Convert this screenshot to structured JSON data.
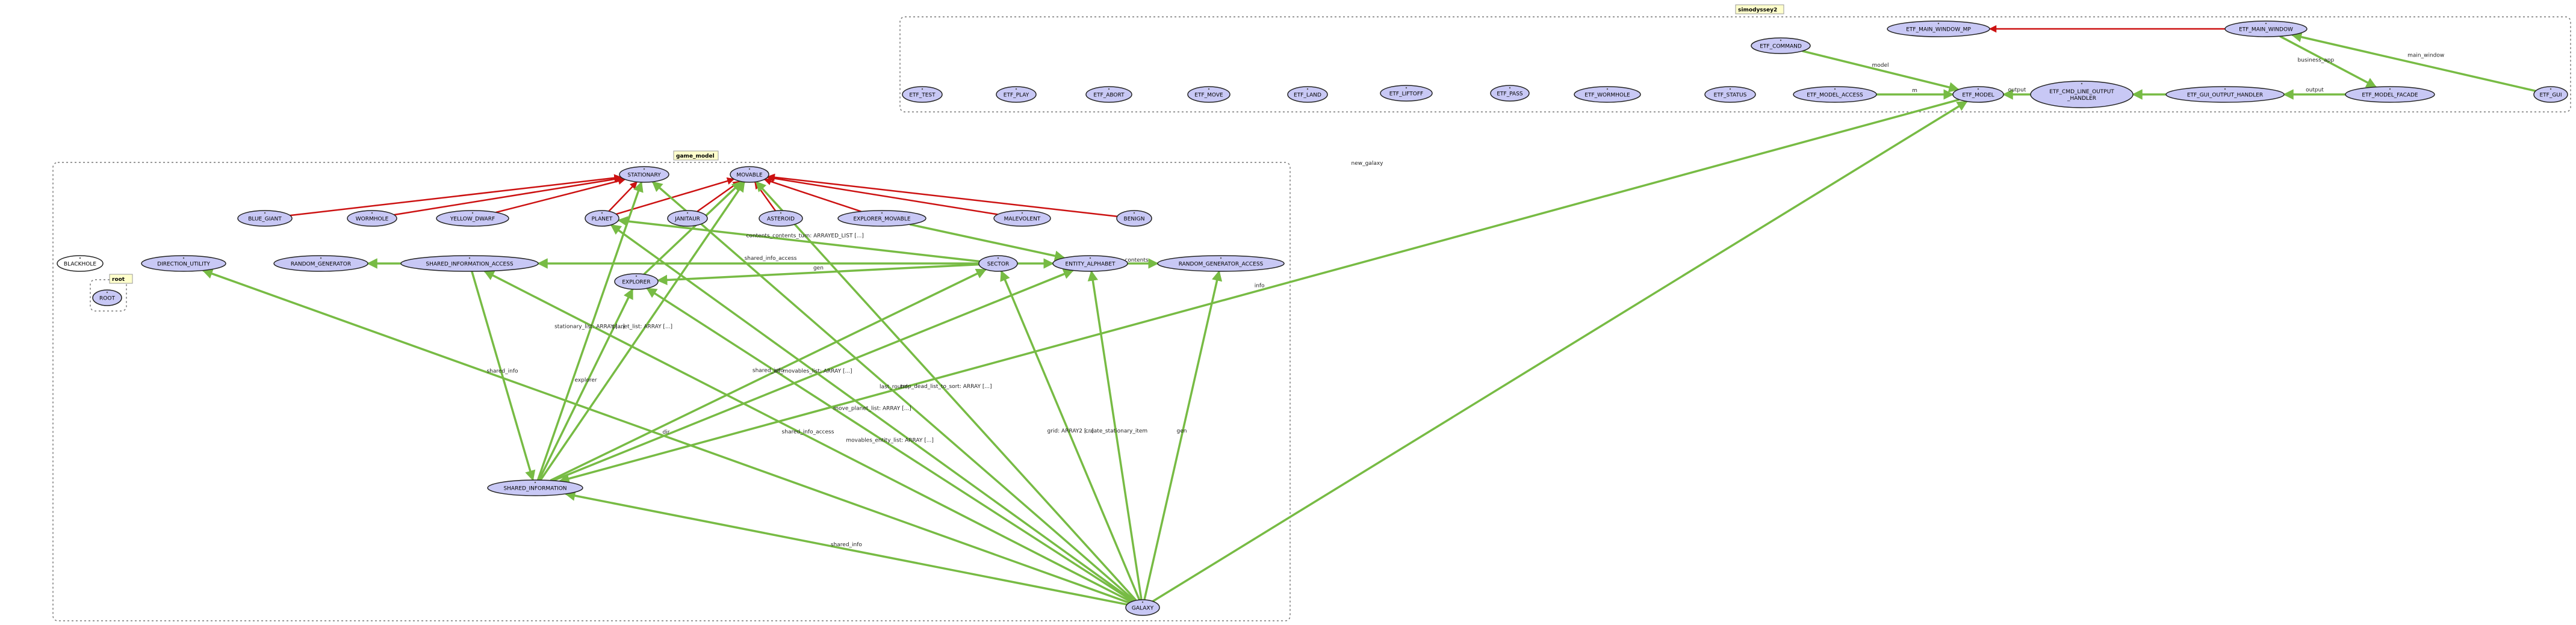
{
  "clusters": [
    {
      "id": "cl_simodyssey2",
      "label": "simodyssey2"
    },
    {
      "id": "cl_game_model",
      "label": "game_model"
    },
    {
      "id": "cl_root",
      "label": "root"
    }
  ],
  "nodes": [
    {
      "id": "n_main_window_mp",
      "label": "ETF_MAIN_WINDOW_MP"
    },
    {
      "id": "n_main_window",
      "label": "ETF_MAIN_WINDOW"
    },
    {
      "id": "n_command",
      "label": "ETF_COMMAND"
    },
    {
      "id": "n_test",
      "label": "ETF_TEST"
    },
    {
      "id": "n_play",
      "label": "ETF_PLAY"
    },
    {
      "id": "n_abort",
      "label": "ETF_ABORT"
    },
    {
      "id": "n_move",
      "label": "ETF_MOVE"
    },
    {
      "id": "n_land",
      "label": "ETF_LAND"
    },
    {
      "id": "n_liftoff",
      "label": "ETF_LIFTOFF"
    },
    {
      "id": "n_pass",
      "label": "ETF_PASS"
    },
    {
      "id": "n_wormhole_cmd",
      "label": "ETF_WORMHOLE"
    },
    {
      "id": "n_status",
      "label": "ETF_STATUS"
    },
    {
      "id": "n_model_access",
      "label": "ETF_MODEL_ACCESS"
    },
    {
      "id": "n_model",
      "label": "ETF_MODEL"
    },
    {
      "id": "n_cmd_line",
      "label": "ETF_CMD_LINE_OUTPUT_HANDLER"
    },
    {
      "id": "n_gui_output",
      "label": "ETF_GUI_OUTPUT_HANDLER"
    },
    {
      "id": "n_model_facade",
      "label": "ETF_MODEL_FACADE"
    },
    {
      "id": "n_gui",
      "label": "ETF_GUI"
    },
    {
      "id": "n_stationary",
      "label": "STATIONARY"
    },
    {
      "id": "n_movable",
      "label": "MOVABLE"
    },
    {
      "id": "n_blue_giant",
      "label": "BLUE_GIANT"
    },
    {
      "id": "n_wormhole",
      "label": "WORMHOLE"
    },
    {
      "id": "n_yellow_dwarf",
      "label": "YELLOW_DWARF"
    },
    {
      "id": "n_planet",
      "label": "PLANET"
    },
    {
      "id": "n_janitaur",
      "label": "JANITAUR"
    },
    {
      "id": "n_asteroid",
      "label": "ASTEROID"
    },
    {
      "id": "n_explorer_movable",
      "label": "EXPLORER_MOVABLE"
    },
    {
      "id": "n_malevolent",
      "label": "MALEVOLENT"
    },
    {
      "id": "n_benign",
      "label": "BENIGN"
    },
    {
      "id": "n_blackhole",
      "label": "BLACKHOLE",
      "deferred": true
    },
    {
      "id": "n_direction_utility",
      "label": "DIRECTION_UTILITY"
    },
    {
      "id": "n_random_generator",
      "label": "RANDOM_GENERATOR"
    },
    {
      "id": "n_shared_info_access",
      "label": "SHARED_INFORMATION_ACCESS"
    },
    {
      "id": "n_sector",
      "label": "SECTOR"
    },
    {
      "id": "n_entity_alphabet",
      "label": "ENTITY_ALPHABET"
    },
    {
      "id": "n_rng_access",
      "label": "RANDOM_GENERATOR_ACCESS"
    },
    {
      "id": "n_explorer",
      "label": "EXPLORER"
    },
    {
      "id": "n_root",
      "label": "ROOT"
    },
    {
      "id": "n_shared_information",
      "label": "SHARED_INFORMATION"
    },
    {
      "id": "n_galaxy",
      "label": "GALAXY"
    }
  ],
  "edges": [
    {
      "from": "n_main_window",
      "to": "n_main_window_mp",
      "kind": "inherit",
      "label": ""
    },
    {
      "from": "n_command",
      "to": "n_model",
      "kind": "client",
      "label": "model"
    },
    {
      "from": "n_model_access",
      "to": "n_model",
      "kind": "client",
      "label": "m"
    },
    {
      "from": "n_cmd_line",
      "to": "n_model",
      "kind": "client",
      "label": "output"
    },
    {
      "from": "n_gui_output",
      "to": "n_cmd_line",
      "kind": "client",
      "label": ""
    },
    {
      "from": "n_model_facade",
      "to": "n_gui_output",
      "kind": "client",
      "label": "output"
    },
    {
      "from": "n_main_window",
      "to": "n_model_facade",
      "kind": "client",
      "label": "business_app"
    },
    {
      "from": "n_gui",
      "to": "n_main_window",
      "kind": "client",
      "label": "main_window"
    },
    {
      "from": "n_blue_giant",
      "to": "n_stationary",
      "kind": "inherit",
      "label": ""
    },
    {
      "from": "n_wormhole",
      "to": "n_stationary",
      "kind": "inherit",
      "label": ""
    },
    {
      "from": "n_yellow_dwarf",
      "to": "n_stationary",
      "kind": "inherit",
      "label": ""
    },
    {
      "from": "n_planet",
      "to": "n_stationary",
      "kind": "inherit",
      "label": ""
    },
    {
      "from": "n_planet",
      "to": "n_movable",
      "kind": "inherit",
      "label": ""
    },
    {
      "from": "n_janitaur",
      "to": "n_movable",
      "kind": "inherit",
      "label": ""
    },
    {
      "from": "n_asteroid",
      "to": "n_movable",
      "kind": "inherit",
      "label": ""
    },
    {
      "from": "n_explorer_movable",
      "to": "n_movable",
      "kind": "inherit",
      "label": ""
    },
    {
      "from": "n_malevolent",
      "to": "n_movable",
      "kind": "inherit",
      "label": ""
    },
    {
      "from": "n_benign",
      "to": "n_movable",
      "kind": "inherit",
      "label": ""
    },
    {
      "from": "n_explorer",
      "to": "n_movable",
      "kind": "client",
      "label": ""
    },
    {
      "from": "n_shared_info_access",
      "to": "n_random_generator",
      "kind": "client",
      "label": ""
    },
    {
      "from": "n_sector",
      "to": "n_shared_info_access",
      "kind": "client",
      "label": "shared_info_access"
    },
    {
      "from": "n_sector",
      "to": "n_entity_alphabet",
      "kind": "client",
      "label": ""
    },
    {
      "from": "n_entity_alphabet",
      "to": "n_rng_access",
      "kind": "client",
      "label": "contents"
    },
    {
      "from": "n_sector",
      "to": "n_planet",
      "kind": "client",
      "label": "contents_contents_turn: ARRAYED_LIST [...]"
    },
    {
      "from": "n_explorer_movable",
      "to": "n_entity_alphabet",
      "kind": "client",
      "label": ""
    },
    {
      "from": "n_sector",
      "to": "n_explorer",
      "kind": "client",
      "label": "gen"
    },
    {
      "from": "n_shared_info_access",
      "to": "n_shared_information",
      "kind": "client",
      "label": "shared_info"
    },
    {
      "from": "n_shared_information",
      "to": "n_stationary",
      "kind": "client",
      "label": "stationary_list: ARRAY [...]"
    },
    {
      "from": "n_shared_information",
      "to": "n_movable",
      "kind": "client",
      "label": "planet_list: ARRAY [...]"
    },
    {
      "from": "n_shared_information",
      "to": "n_explorer",
      "kind": "client",
      "label": "explorer"
    },
    {
      "from": "n_shared_information",
      "to": "n_sector",
      "kind": "client",
      "label": "shared_info"
    },
    {
      "from": "n_shared_information",
      "to": "n_entity_alphabet",
      "kind": "client",
      "label": "all_movables_list: ARRAY [...]"
    },
    {
      "from": "n_galaxy",
      "to": "n_direction_utility",
      "kind": "client",
      "label": "dir"
    },
    {
      "from": "n_galaxy",
      "to": "n_shared_info_access",
      "kind": "client",
      "label": "shared_info_access"
    },
    {
      "from": "n_galaxy",
      "to": "n_shared_information",
      "kind": "client",
      "label": "shared_info"
    },
    {
      "from": "n_galaxy",
      "to": "n_sector",
      "kind": "client",
      "label": "grid: ARRAY2 [...]"
    },
    {
      "from": "n_galaxy",
      "to": "n_entity_alphabet",
      "kind": "client",
      "label": "create_stationary_item"
    },
    {
      "from": "n_galaxy",
      "to": "n_rng_access",
      "kind": "client",
      "label": "gen"
    },
    {
      "from": "n_galaxy",
      "to": "n_planet",
      "kind": "client",
      "label": "move_planet_list: ARRAY [...]"
    },
    {
      "from": "n_galaxy",
      "to": "n_movable",
      "kind": "client",
      "label": "tmp_dead_list_to_sort: ARRAY [...]"
    },
    {
      "from": "n_galaxy",
      "to": "n_explorer",
      "kind": "client",
      "label": "movables_entity_list: ARRAY [...]"
    },
    {
      "from": "n_galaxy",
      "to": "n_model",
      "kind": "client",
      "label": "new_galaxy"
    },
    {
      "from": "n_model",
      "to": "n_shared_information",
      "kind": "client",
      "label": "info"
    },
    {
      "from": "n_galaxy",
      "to": "n_stationary",
      "kind": "client",
      "label": "last_round"
    }
  ],
  "colors": {
    "client_edge": "#77bb44",
    "inherit_edge": "#cc1111",
    "node_fill": "#c8c8f5",
    "cluster_label_bg": "#ffffcc"
  }
}
